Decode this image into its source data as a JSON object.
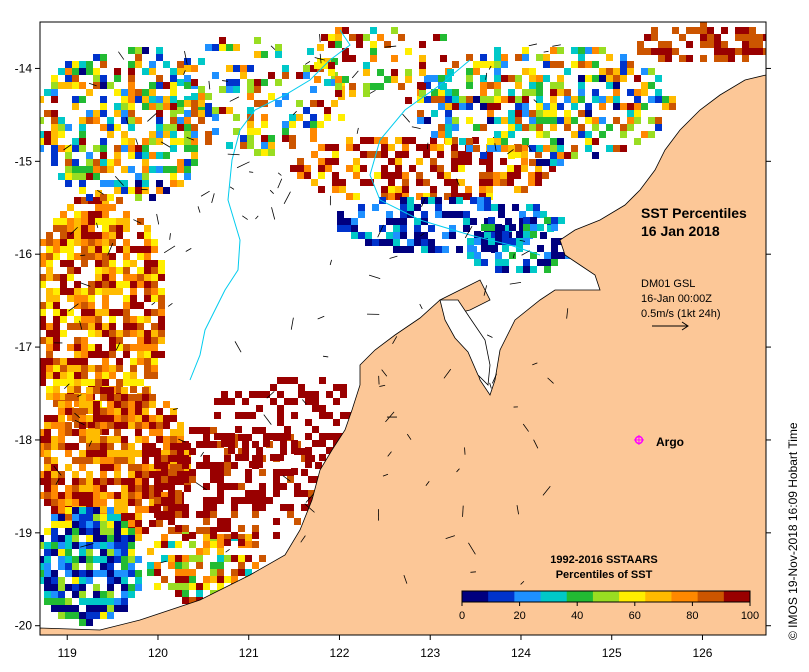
{
  "map": {
    "title_line1": "SST Percentiles",
    "title_line2": "16 Jan 2018",
    "x_ticks": [
      "119",
      "120",
      "121",
      "122",
      "123",
      "124",
      "125",
      "126"
    ],
    "y_ticks": [
      "-14",
      "-15",
      "-16",
      "-17",
      "-18",
      "-19",
      "-20"
    ],
    "lon_range": [
      118.7,
      126.7
    ],
    "lat_range": [
      -13.5,
      -20.1
    ]
  },
  "current_info": {
    "line1": "DM01 GSL",
    "line2": "16-Jan 00:00Z",
    "line3": "0.5m/s (1kt 24h)"
  },
  "argo": {
    "label": "Argo",
    "lon": 125.3,
    "lat": -18.0,
    "color": "#ff00ff"
  },
  "colorbar": {
    "title_line1": "1992-2016 SSTAARS",
    "title_line2": "Percentiles of SST",
    "ticks": [
      "0",
      "20",
      "40",
      "60",
      "80",
      "100"
    ],
    "colors": [
      "#00007f",
      "#0033cc",
      "#1e90ff",
      "#00c8c8",
      "#22bb33",
      "#99dd22",
      "#ffee00",
      "#ffbb00",
      "#ff8800",
      "#cc5500",
      "#990000"
    ]
  },
  "colors": {
    "land": "#fcc797",
    "ocean": "#ffffff",
    "contour": "#00ccee"
  },
  "credit": "© IMOS 19-Nov-2018 16:09 Hobart Time"
}
